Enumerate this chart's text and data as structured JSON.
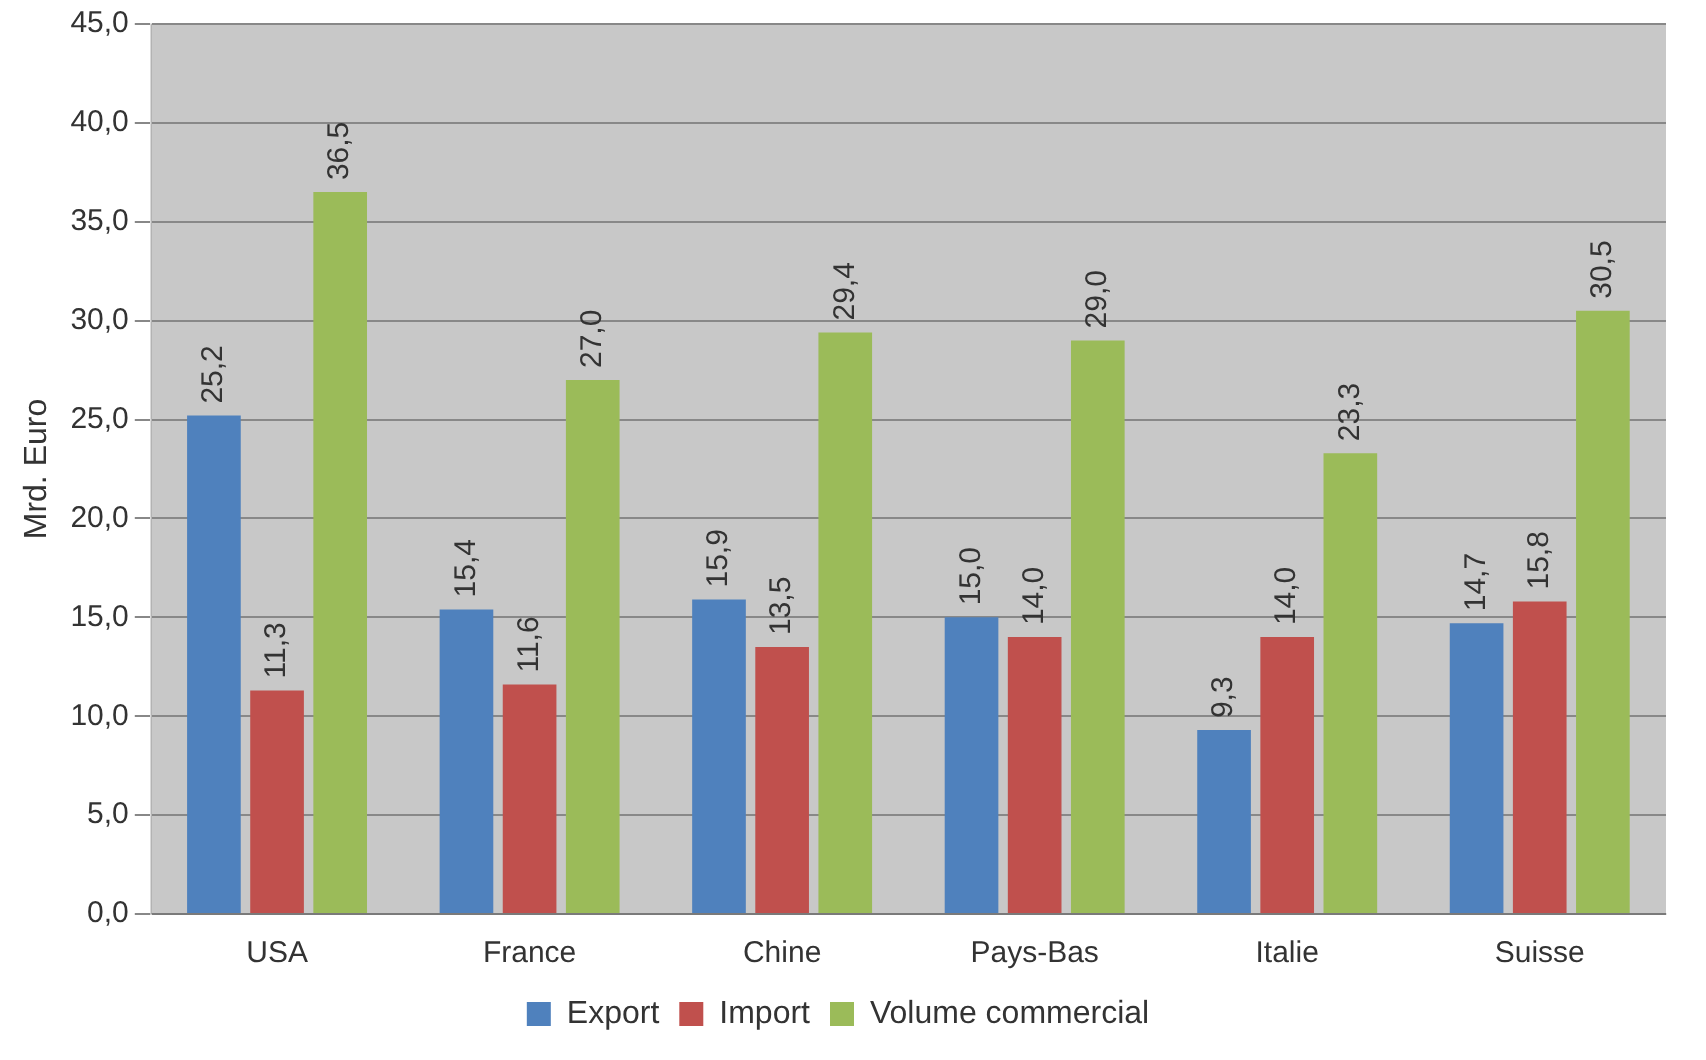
{
  "chart_data": {
    "type": "bar",
    "ylabel": "Mrd. Euro",
    "categories": [
      "USA",
      "France",
      "Chine",
      "Pays-Bas",
      "Italie",
      "Suisse"
    ],
    "series": [
      {
        "name": "Export",
        "color": "#4f81bd",
        "values": [
          25.2,
          15.4,
          15.9,
          15.0,
          9.3,
          14.7
        ],
        "value_labels": [
          "25,2",
          "15,4",
          "15,9",
          "15,0",
          "9,3",
          "14,7"
        ]
      },
      {
        "name": "Import",
        "color": "#c0504d",
        "values": [
          11.3,
          11.6,
          13.5,
          14.0,
          14.0,
          15.8
        ],
        "value_labels": [
          "11,3",
          "11,6",
          "13,5",
          "14,0",
          "14,0",
          "15,8"
        ]
      },
      {
        "name": "Volume commercial",
        "color": "#9bbb59",
        "values": [
          36.5,
          27.0,
          29.4,
          29.0,
          23.3,
          30.5
        ],
        "value_labels": [
          "36,5",
          "27,0",
          "29,4",
          "29,0",
          "23,3",
          "30,5"
        ]
      }
    ],
    "ylim": [
      0,
      45
    ],
    "yticks": [
      {
        "value": 0,
        "label": "0,0"
      },
      {
        "value": 5,
        "label": "5,0"
      },
      {
        "value": 10,
        "label": "10,0"
      },
      {
        "value": 15,
        "label": "15,0"
      },
      {
        "value": 20,
        "label": "20,0"
      },
      {
        "value": 25,
        "label": "25,0"
      },
      {
        "value": 30,
        "label": "30,0"
      },
      {
        "value": 35,
        "label": "35,0"
      },
      {
        "value": 40,
        "label": "40,0"
      },
      {
        "value": 45,
        "label": "45,0"
      }
    ],
    "grid": "y",
    "legend": "bottom"
  }
}
